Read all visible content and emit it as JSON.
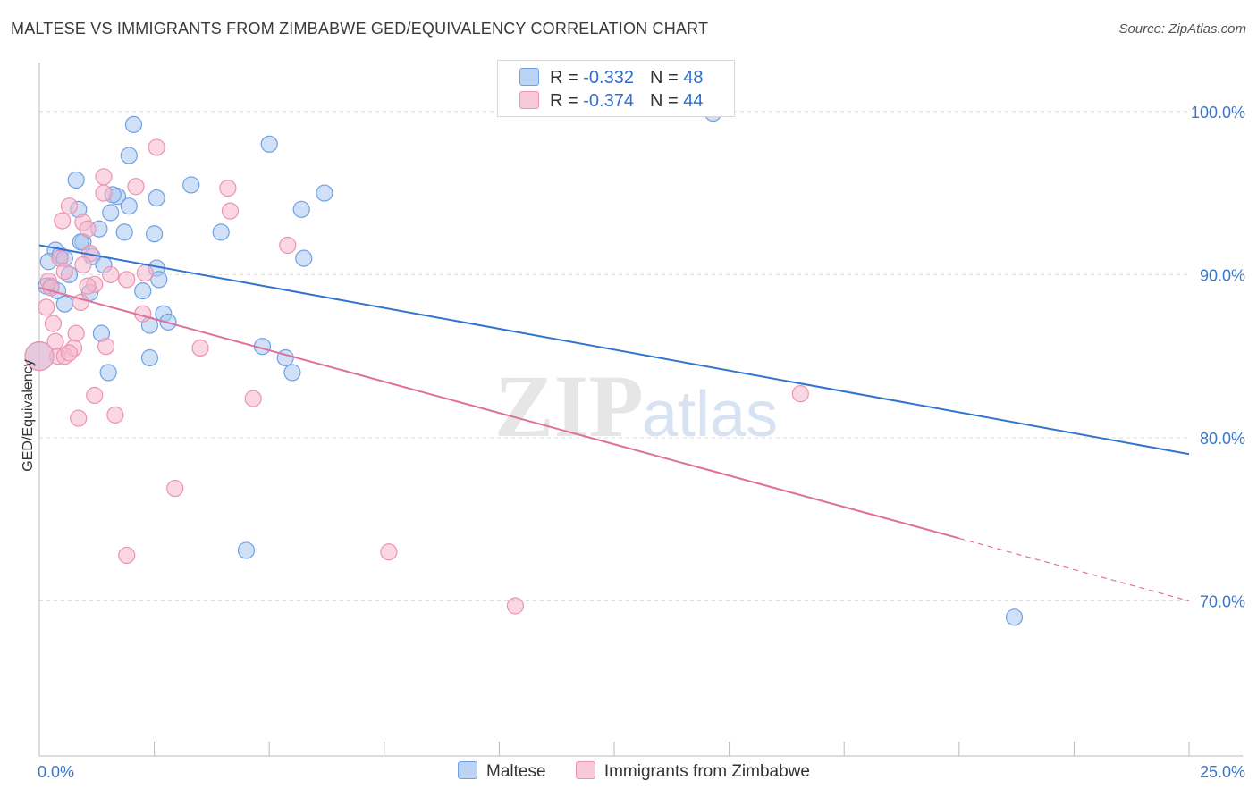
{
  "title": "MALTESE VS IMMIGRANTS FROM ZIMBABWE GED/EQUIVALENCY CORRELATION CHART",
  "source": "Source: ZipAtlas.com",
  "legend": {
    "rows": [
      {
        "r_label": "R = ",
        "r_value": "-0.332",
        "n_label": "N = ",
        "n_value": "48",
        "color": "#a9c8f0"
      },
      {
        "r_label": "R = ",
        "r_value": "-0.374",
        "n_label": "N = ",
        "n_value": "44",
        "color": "#f5b6ca"
      }
    ]
  },
  "chart_data": {
    "type": "scatter",
    "xlabel": "",
    "ylabel": "GED/Equivalency",
    "xlim": [
      0,
      25
    ],
    "ylim": [
      60.5,
      103
    ],
    "x_tick_labels": [
      "0.0%",
      "25.0%"
    ],
    "y_ticks": [
      100,
      90,
      80,
      70
    ],
    "y_tick_labels": [
      "100.0%",
      "90.0%",
      "80.0%",
      "70.0%"
    ],
    "grid": true,
    "legend_position": "top-center",
    "series": [
      {
        "name": "Maltese",
        "color": "#6fa0e4",
        "fill": "#a9c8f0",
        "line_color": "#2f74d0",
        "trend": {
          "x": [
            0,
            25
          ],
          "y": [
            91.8,
            79.0
          ],
          "solid_until": 25
        },
        "points": [
          [
            2.05,
            99.2
          ],
          [
            1.95,
            97.3
          ],
          [
            5.0,
            98.0
          ],
          [
            0.8,
            95.8
          ],
          [
            3.3,
            95.5
          ],
          [
            6.2,
            95.0
          ],
          [
            1.7,
            94.8
          ],
          [
            1.6,
            94.9
          ],
          [
            2.55,
            94.7
          ],
          [
            1.95,
            94.2
          ],
          [
            5.7,
            94.0
          ],
          [
            0.85,
            94.0
          ],
          [
            1.55,
            93.8
          ],
          [
            1.3,
            92.8
          ],
          [
            1.85,
            92.6
          ],
          [
            3.95,
            92.6
          ],
          [
            2.5,
            92.5
          ],
          [
            0.95,
            92.0
          ],
          [
            0.9,
            92.0
          ],
          [
            0.35,
            91.5
          ],
          [
            0.45,
            91.2
          ],
          [
            1.15,
            91.1
          ],
          [
            0.55,
            91.0
          ],
          [
            5.75,
            91.0
          ],
          [
            0.2,
            90.8
          ],
          [
            1.4,
            90.6
          ],
          [
            2.55,
            90.4
          ],
          [
            0.65,
            90.0
          ],
          [
            2.6,
            89.7
          ],
          [
            0.25,
            89.3
          ],
          [
            0.4,
            89.0
          ],
          [
            1.1,
            88.9
          ],
          [
            2.25,
            89.0
          ],
          [
            0.55,
            88.2
          ],
          [
            2.7,
            87.6
          ],
          [
            2.8,
            87.1
          ],
          [
            2.4,
            86.9
          ],
          [
            1.35,
            86.4
          ],
          [
            4.85,
            85.6
          ],
          [
            2.4,
            84.9
          ],
          [
            5.35,
            84.9
          ],
          [
            1.5,
            84.0
          ],
          [
            5.5,
            84.0
          ],
          [
            0.0,
            85.0
          ],
          [
            4.5,
            73.1
          ],
          [
            21.2,
            69.0
          ],
          [
            14.65,
            99.9
          ],
          [
            0.15,
            89.3
          ]
        ],
        "sizes": [
          9,
          9,
          9,
          9,
          9,
          9,
          9,
          9,
          9,
          9,
          9,
          9,
          9,
          9,
          9,
          9,
          9,
          9,
          9,
          9,
          9,
          9,
          9,
          9,
          9,
          9,
          9,
          9,
          9,
          9,
          9,
          9,
          9,
          9,
          9,
          9,
          9,
          9,
          9,
          9,
          9,
          9,
          9,
          16,
          9,
          9,
          9,
          9
        ]
      },
      {
        "name": "Immigrants from Zimbabwe",
        "color": "#ec93b1",
        "fill": "#f5b6ca",
        "line_color": "#e0709a",
        "trend": {
          "x": [
            0,
            25
          ],
          "y": [
            89.2,
            70.0
          ],
          "solid_until": 20
        },
        "points": [
          [
            2.55,
            97.8
          ],
          [
            1.4,
            96.0
          ],
          [
            2.1,
            95.4
          ],
          [
            4.1,
            95.3
          ],
          [
            1.4,
            95.0
          ],
          [
            0.65,
            94.2
          ],
          [
            4.15,
            93.9
          ],
          [
            0.5,
            93.3
          ],
          [
            0.95,
            93.2
          ],
          [
            1.05,
            92.8
          ],
          [
            5.4,
            91.8
          ],
          [
            1.1,
            91.3
          ],
          [
            0.45,
            91.0
          ],
          [
            0.95,
            90.6
          ],
          [
            0.55,
            90.2
          ],
          [
            1.55,
            90.0
          ],
          [
            2.3,
            90.1
          ],
          [
            1.9,
            89.7
          ],
          [
            0.2,
            89.6
          ],
          [
            0.25,
            89.2
          ],
          [
            1.2,
            89.4
          ],
          [
            1.05,
            89.3
          ],
          [
            0.15,
            88.0
          ],
          [
            0.9,
            88.3
          ],
          [
            2.25,
            87.6
          ],
          [
            0.3,
            87.0
          ],
          [
            0.8,
            86.4
          ],
          [
            0.35,
            85.9
          ],
          [
            1.45,
            85.6
          ],
          [
            3.5,
            85.5
          ],
          [
            0.75,
            85.5
          ],
          [
            0.4,
            85.0
          ],
          [
            0.55,
            85.0
          ],
          [
            0.0,
            85.0
          ],
          [
            1.2,
            82.6
          ],
          [
            4.65,
            82.4
          ],
          [
            16.55,
            82.7
          ],
          [
            1.65,
            81.4
          ],
          [
            0.85,
            81.2
          ],
          [
            2.95,
            76.9
          ],
          [
            1.9,
            72.8
          ],
          [
            7.6,
            73.0
          ],
          [
            10.35,
            69.7
          ],
          [
            0.65,
            85.2
          ]
        ],
        "sizes": [
          9,
          9,
          9,
          9,
          9,
          9,
          9,
          9,
          9,
          9,
          9,
          9,
          9,
          9,
          9,
          9,
          9,
          9,
          9,
          9,
          9,
          9,
          9,
          9,
          9,
          9,
          9,
          9,
          9,
          9,
          9,
          9,
          9,
          16,
          9,
          9,
          9,
          9,
          9,
          9,
          9,
          9,
          9,
          9
        ]
      }
    ]
  }
}
